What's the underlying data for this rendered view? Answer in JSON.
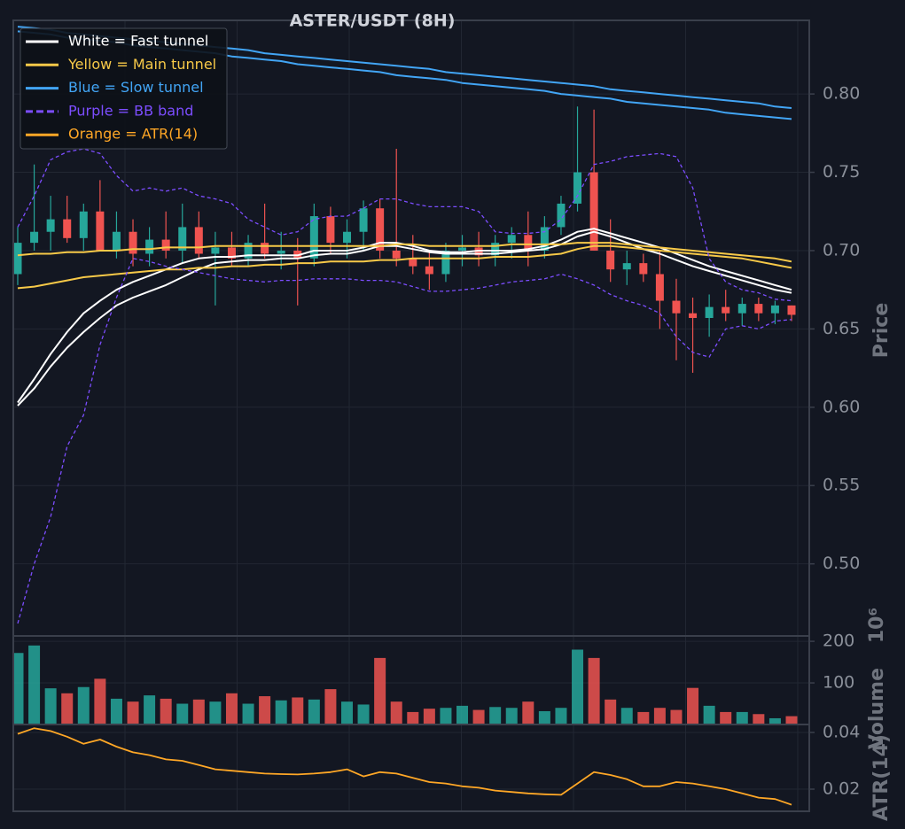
{
  "chart_data": [
    {
      "type": "candlestick",
      "title": "ASTER/USDT (8H)",
      "ylabel": "Price",
      "grid": true,
      "ylim": [
        0.454,
        0.847
      ],
      "yticks": [
        {
          "value": 0.5,
          "label": "0.50"
        },
        0.55,
        {
          "value": 0.6,
          "label": "0.60"
        },
        0.65,
        {
          "value": 0.7,
          "label": "0.70"
        },
        0.75,
        {
          "value": 0.8,
          "label": "0.80"
        }
      ],
      "up_color": "#26a69a",
      "down_color": "#ef5350",
      "ohlc": {
        "open": [
          0.685,
          0.705,
          0.712,
          0.72,
          0.708,
          0.725,
          0.7,
          0.712,
          0.698,
          0.707,
          0.7,
          0.715,
          0.698,
          0.702,
          0.695,
          0.705,
          0.698,
          0.7,
          0.695,
          0.722,
          0.705,
          0.712,
          0.727,
          0.7,
          0.695,
          0.69,
          0.685,
          0.7,
          0.702,
          0.697,
          0.705,
          0.71,
          0.7,
          0.715,
          0.73,
          0.75,
          0.7,
          0.688,
          0.692,
          0.685,
          0.668,
          0.66,
          0.657,
          0.664,
          0.66,
          0.666,
          0.66,
          0.665
        ],
        "high": [
          0.715,
          0.755,
          0.735,
          0.735,
          0.73,
          0.745,
          0.725,
          0.72,
          0.715,
          0.725,
          0.73,
          0.725,
          0.712,
          0.712,
          0.71,
          0.73,
          0.712,
          0.708,
          0.73,
          0.728,
          0.72,
          0.732,
          0.733,
          0.765,
          0.71,
          0.7,
          0.705,
          0.71,
          0.712,
          0.71,
          0.715,
          0.725,
          0.722,
          0.735,
          0.792,
          0.79,
          0.72,
          0.7,
          0.698,
          0.7,
          0.682,
          0.67,
          0.672,
          0.675,
          0.67,
          0.67,
          0.668,
          0.665
        ],
        "low": [
          0.678,
          0.7,
          0.7,
          0.705,
          0.7,
          0.705,
          0.695,
          0.69,
          0.69,
          0.695,
          0.692,
          0.695,
          0.665,
          0.69,
          0.69,
          0.695,
          0.688,
          0.665,
          0.69,
          0.698,
          0.695,
          0.7,
          0.695,
          0.69,
          0.685,
          0.675,
          0.68,
          0.69,
          0.69,
          0.69,
          0.695,
          0.69,
          0.695,
          0.71,
          0.725,
          0.7,
          0.68,
          0.678,
          0.68,
          0.65,
          0.63,
          0.622,
          0.645,
          0.655,
          0.652,
          0.655,
          0.653,
          0.655
        ],
        "close": [
          0.705,
          0.712,
          0.72,
          0.708,
          0.725,
          0.7,
          0.712,
          0.698,
          0.707,
          0.7,
          0.715,
          0.698,
          0.702,
          0.695,
          0.705,
          0.698,
          0.7,
          0.695,
          0.722,
          0.705,
          0.712,
          0.727,
          0.7,
          0.695,
          0.69,
          0.685,
          0.7,
          0.702,
          0.697,
          0.705,
          0.71,
          0.7,
          0.715,
          0.73,
          0.75,
          0.7,
          0.688,
          0.692,
          0.685,
          0.668,
          0.66,
          0.657,
          0.664,
          0.66,
          0.666,
          0.66,
          0.665,
          0.659
        ]
      },
      "series": [
        {
          "name": "White = Fast tunnel",
          "color": "#ffffff",
          "dashed": false,
          "width": 2,
          "upper": [
            0.603,
            0.618,
            0.634,
            0.648,
            0.66,
            0.668,
            0.675,
            0.68,
            0.684,
            0.688,
            0.692,
            0.695,
            0.696,
            0.696,
            0.697,
            0.697,
            0.697,
            0.697,
            0.7,
            0.7,
            0.7,
            0.702,
            0.705,
            0.705,
            0.703,
            0.7,
            0.699,
            0.699,
            0.7,
            0.7,
            0.7,
            0.701,
            0.703,
            0.707,
            0.712,
            0.714,
            0.711,
            0.708,
            0.705,
            0.702,
            0.698,
            0.694,
            0.69,
            0.687,
            0.684,
            0.681,
            0.678,
            0.675
          ],
          "lower": [
            0.601,
            0.612,
            0.626,
            0.638,
            0.648,
            0.657,
            0.665,
            0.67,
            0.674,
            0.678,
            0.683,
            0.688,
            0.692,
            0.693,
            0.694,
            0.694,
            0.695,
            0.695,
            0.697,
            0.698,
            0.698,
            0.7,
            0.703,
            0.703,
            0.701,
            0.699,
            0.698,
            0.698,
            0.698,
            0.698,
            0.699,
            0.7,
            0.701,
            0.704,
            0.709,
            0.712,
            0.709,
            0.705,
            0.701,
            0.698,
            0.694,
            0.69,
            0.687,
            0.684,
            0.681,
            0.678,
            0.675,
            0.673
          ]
        },
        {
          "name": "Yellow = Main tunnel",
          "color": "#f7c948",
          "dashed": false,
          "width": 2,
          "upper": [
            0.697,
            0.698,
            0.698,
            0.699,
            0.699,
            0.7,
            0.7,
            0.701,
            0.701,
            0.702,
            0.702,
            0.702,
            0.703,
            0.703,
            0.703,
            0.703,
            0.703,
            0.703,
            0.703,
            0.703,
            0.703,
            0.703,
            0.703,
            0.704,
            0.704,
            0.703,
            0.703,
            0.703,
            0.703,
            0.703,
            0.704,
            0.704,
            0.704,
            0.704,
            0.705,
            0.705,
            0.705,
            0.704,
            0.703,
            0.702,
            0.701,
            0.7,
            0.699,
            0.698,
            0.697,
            0.696,
            0.695,
            0.693
          ],
          "lower": [
            0.676,
            0.677,
            0.679,
            0.681,
            0.683,
            0.684,
            0.685,
            0.686,
            0.687,
            0.688,
            0.688,
            0.689,
            0.689,
            0.69,
            0.69,
            0.691,
            0.691,
            0.692,
            0.692,
            0.693,
            0.693,
            0.693,
            0.694,
            0.694,
            0.695,
            0.695,
            0.695,
            0.695,
            0.695,
            0.696,
            0.696,
            0.696,
            0.697,
            0.698,
            0.701,
            0.703,
            0.703,
            0.702,
            0.701,
            0.7,
            0.699,
            0.698,
            0.697,
            0.696,
            0.695,
            0.693,
            0.691,
            0.689
          ]
        },
        {
          "name": "Blue = Slow tunnel",
          "color": "#42a5f5",
          "dashed": false,
          "width": 2,
          "upper": [
            0.843,
            0.842,
            0.841,
            0.839,
            0.838,
            0.837,
            0.836,
            0.835,
            0.834,
            0.833,
            0.832,
            0.831,
            0.83,
            0.829,
            0.828,
            0.826,
            0.825,
            0.824,
            0.823,
            0.822,
            0.821,
            0.82,
            0.819,
            0.818,
            0.817,
            0.816,
            0.814,
            0.813,
            0.812,
            0.811,
            0.81,
            0.809,
            0.808,
            0.807,
            0.806,
            0.805,
            0.803,
            0.802,
            0.801,
            0.8,
            0.799,
            0.798,
            0.797,
            0.796,
            0.795,
            0.794,
            0.792,
            0.791
          ],
          "lower": [
            0.84,
            0.839,
            0.838,
            0.836,
            0.835,
            0.834,
            0.833,
            0.831,
            0.83,
            0.829,
            0.828,
            0.827,
            0.826,
            0.824,
            0.823,
            0.822,
            0.821,
            0.819,
            0.818,
            0.817,
            0.816,
            0.815,
            0.814,
            0.812,
            0.811,
            0.81,
            0.809,
            0.807,
            0.806,
            0.805,
            0.804,
            0.803,
            0.802,
            0.8,
            0.799,
            0.798,
            0.797,
            0.795,
            0.794,
            0.793,
            0.792,
            0.791,
            0.79,
            0.788,
            0.787,
            0.786,
            0.785,
            0.784
          ]
        },
        {
          "name": "Purple = BB band",
          "color": "#7c4dff",
          "dashed": true,
          "width": 1.3,
          "upper": [
            0.715,
            0.735,
            0.758,
            0.763,
            0.765,
            0.762,
            0.748,
            0.738,
            0.74,
            0.738,
            0.74,
            0.735,
            0.733,
            0.73,
            0.72,
            0.715,
            0.71,
            0.712,
            0.72,
            0.722,
            0.722,
            0.727,
            0.733,
            0.733,
            0.73,
            0.728,
            0.728,
            0.728,
            0.725,
            0.712,
            0.711,
            0.711,
            0.712,
            0.72,
            0.735,
            0.755,
            0.757,
            0.76,
            0.761,
            0.762,
            0.76,
            0.74,
            0.695,
            0.68,
            0.675,
            0.673,
            0.669,
            0.668
          ],
          "lower": [
            0.462,
            0.5,
            0.53,
            0.575,
            0.595,
            0.64,
            0.67,
            0.695,
            0.693,
            0.69,
            0.688,
            0.686,
            0.684,
            0.682,
            0.681,
            0.68,
            0.681,
            0.681,
            0.682,
            0.682,
            0.682,
            0.681,
            0.681,
            0.68,
            0.677,
            0.674,
            0.674,
            0.675,
            0.676,
            0.678,
            0.68,
            0.681,
            0.682,
            0.685,
            0.682,
            0.678,
            0.672,
            0.668,
            0.665,
            0.66,
            0.645,
            0.635,
            0.632,
            0.65,
            0.652,
            0.65,
            0.655,
            0.656
          ]
        }
      ]
    },
    {
      "type": "bar",
      "ylabel": "Volume",
      "multiplier": "10⁶",
      "grid": true,
      "ylim": [
        0,
        213
      ],
      "yticks": [
        100,
        200
      ],
      "values": [
        172,
        190,
        87,
        75,
        90,
        110,
        62,
        55,
        70,
        62,
        50,
        60,
        55,
        75,
        50,
        68,
        58,
        65,
        60,
        85,
        55,
        48,
        160,
        55,
        30,
        38,
        40,
        45,
        35,
        42,
        40,
        55,
        32,
        40,
        180,
        160,
        60,
        40,
        30,
        40,
        35,
        88,
        45,
        30,
        30,
        25,
        15,
        20
      ]
    },
    {
      "type": "line",
      "ylabel": "ATR(14)",
      "grid": true,
      "ylim": [
        0.0122,
        0.0428
      ],
      "yticks": [
        0.02,
        0.04
      ],
      "series": [
        {
          "name": "Orange = ATR(14)",
          "color": "#ffa726",
          "values": [
            0.0395,
            0.0415,
            0.0405,
            0.0385,
            0.036,
            0.0375,
            0.035,
            0.033,
            0.032,
            0.0305,
            0.03,
            0.0285,
            0.027,
            0.0265,
            0.026,
            0.0255,
            0.0253,
            0.0252,
            0.0255,
            0.026,
            0.027,
            0.0245,
            0.026,
            0.0255,
            0.024,
            0.0225,
            0.022,
            0.021,
            0.0205,
            0.0195,
            0.019,
            0.0185,
            0.0182,
            0.018,
            0.022,
            0.026,
            0.025,
            0.0235,
            0.021,
            0.021,
            0.0225,
            0.022,
            0.021,
            0.02,
            0.0185,
            0.017,
            0.0165,
            0.0145
          ]
        }
      ]
    }
  ]
}
